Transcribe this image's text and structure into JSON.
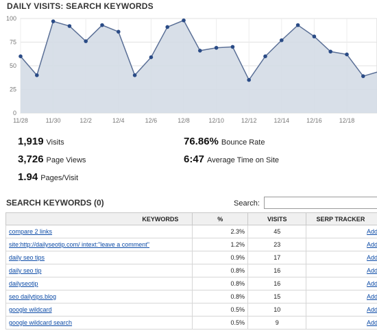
{
  "header": {
    "title": "DAILY VISITS: SEARCH KEYWORDS"
  },
  "chart_data": {
    "type": "area",
    "x": [
      "11/28",
      "11/29",
      "11/30",
      "12/1",
      "12/2",
      "12/3",
      "12/4",
      "12/5",
      "12/6",
      "12/7",
      "12/8",
      "12/9",
      "12/10",
      "12/11",
      "12/12",
      "12/13",
      "12/14",
      "12/15",
      "12/16",
      "12/17",
      "12/18",
      "12/19",
      "12/20"
    ],
    "values": [
      60,
      40,
      97,
      92,
      76,
      93,
      86,
      40,
      59,
      91,
      98,
      66,
      69,
      70,
      35,
      60,
      77,
      93,
      81,
      65,
      62,
      39,
      44
    ],
    "xticks": [
      "11/28",
      "11/30",
      "12/2",
      "12/4",
      "12/6",
      "12/8",
      "12/10",
      "12/12",
      "12/14",
      "12/16",
      "12/18"
    ],
    "yticks": [
      "0",
      "25",
      "50",
      "75",
      "100"
    ],
    "ylim": [
      0,
      100
    ],
    "grid": true,
    "line_color": "#5a6f96",
    "fill_color": "#d4dbe6",
    "point_color": "#2a4b86"
  },
  "stats": {
    "visits": {
      "value": "1,919",
      "label": "Visits"
    },
    "pageviews": {
      "value": "3,726",
      "label": "Page Views"
    },
    "pages_per_visit": {
      "value": "1.94",
      "label": "Pages/Visit"
    },
    "bounce": {
      "value": "76.86%",
      "label": "Bounce Rate"
    },
    "time": {
      "value": "6:47",
      "label": "Average Time on Site"
    }
  },
  "keywords_section": {
    "title": "SEARCH KEYWORDS (0)",
    "search_label": "Search:",
    "search_value": "",
    "columns": {
      "keyword": "KEYWORDS",
      "pct": "%",
      "visits": "VISITS",
      "serp": "SERP TRACKER"
    },
    "rows": [
      {
        "keyword": "compare 2 links",
        "pct": "2.3%",
        "visits": "45",
        "action": "Add"
      },
      {
        "keyword": "site:http://dailyseotip.com/ intext:\"leave a comment\"",
        "pct": "1.2%",
        "visits": "23",
        "action": "Add"
      },
      {
        "keyword": "daily seo tips",
        "pct": "0.9%",
        "visits": "17",
        "action": "Add"
      },
      {
        "keyword": "daily seo tip",
        "pct": "0.8%",
        "visits": "16",
        "action": "Add"
      },
      {
        "keyword": "dailyseotip",
        "pct": "0.8%",
        "visits": "16",
        "action": "Add"
      },
      {
        "keyword": "seo dailytips.blog",
        "pct": "0.8%",
        "visits": "15",
        "action": "Add"
      },
      {
        "keyword": "google wildcard",
        "pct": "0.5%",
        "visits": "10",
        "action": "Add"
      },
      {
        "keyword": "google wildcard search",
        "pct": "0.5%",
        "visits": "9",
        "action": "Add"
      }
    ]
  }
}
